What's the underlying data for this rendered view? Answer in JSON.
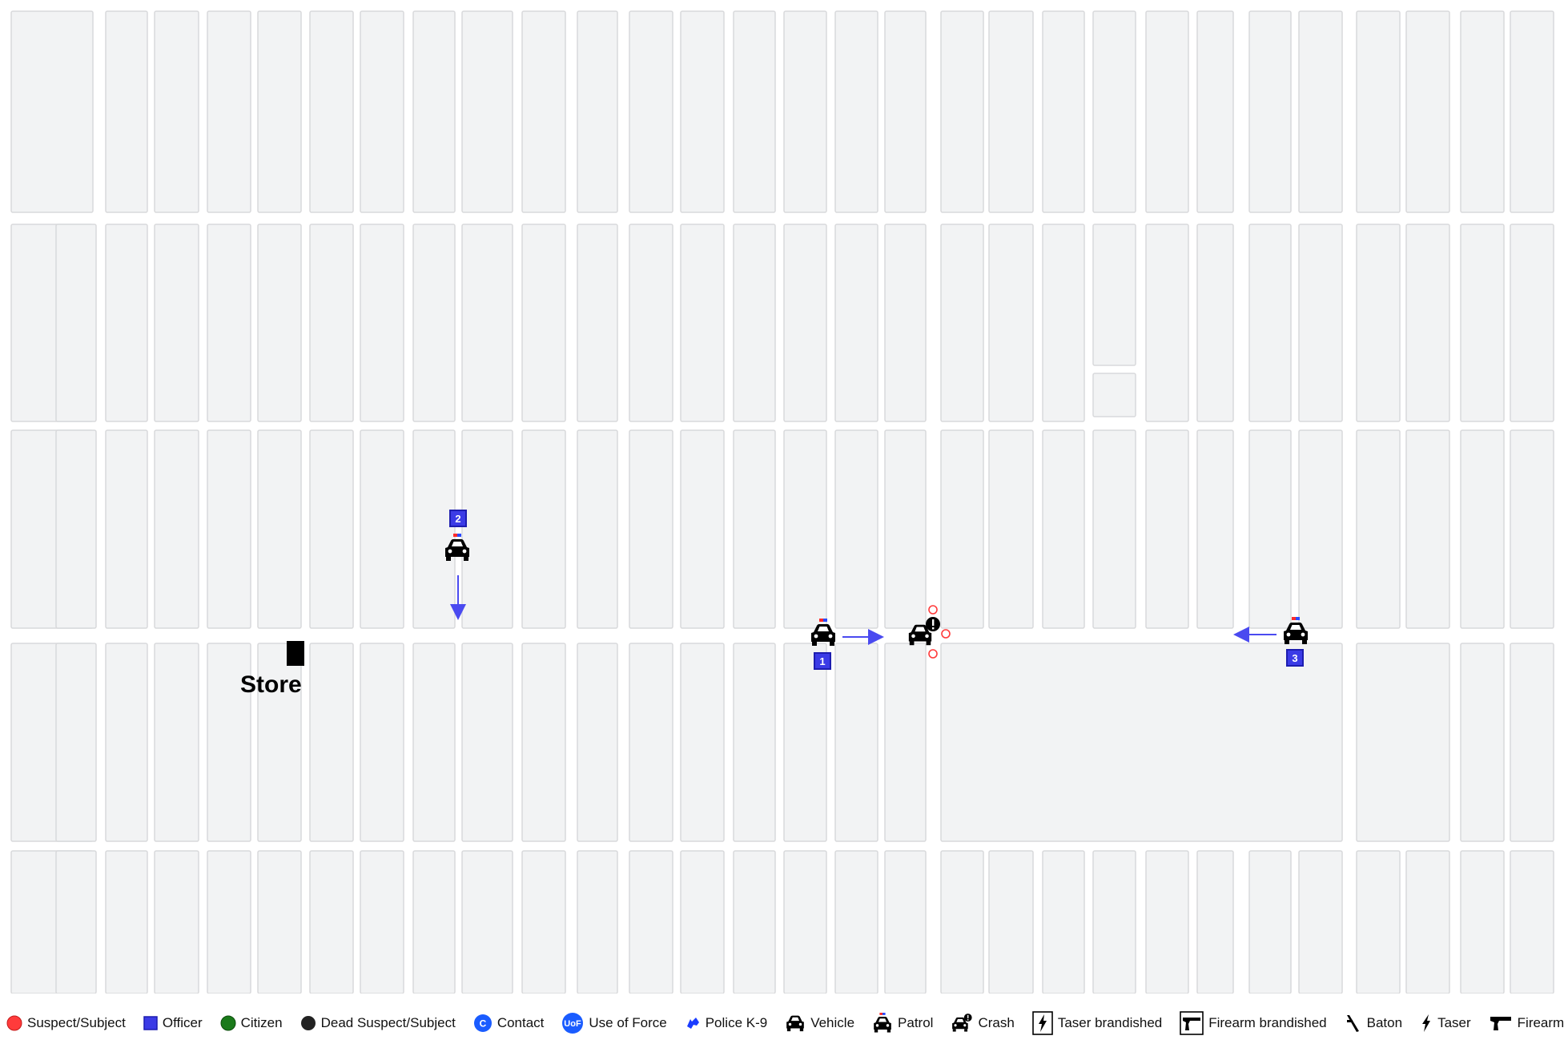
{
  "map": {
    "landmark_label": "Store",
    "officers": [
      {
        "badge": "1",
        "direction": "east"
      },
      {
        "badge": "2",
        "direction": "south"
      },
      {
        "badge": "3",
        "direction": "west"
      }
    ],
    "crash_marker": "crash-icon",
    "suspect_markers": 3
  },
  "colors": {
    "suspect": "#ff3b3b",
    "officer": "#3b3be6",
    "citizen": "#1a7a1a",
    "dead": "#222222",
    "contact": "#1a5cff",
    "block_fill": "#f2f3f4",
    "block_stroke": "#d8d9db"
  },
  "legend": [
    {
      "icon": "suspect-dot-icon",
      "label": "Suspect/Subject"
    },
    {
      "icon": "officer-square-icon",
      "label": "Officer"
    },
    {
      "icon": "citizen-dot-icon",
      "label": "Citizen"
    },
    {
      "icon": "dead-suspect-dot-icon",
      "label": "Dead Suspect/Subject"
    },
    {
      "icon": "contact-icon",
      "label": "Contact",
      "glyph": "C"
    },
    {
      "icon": "use-of-force-icon",
      "label": "Use of Force",
      "glyph": "UoF"
    },
    {
      "icon": "k9-icon",
      "label": "Police K-9"
    },
    {
      "icon": "vehicle-icon",
      "label": "Vehicle"
    },
    {
      "icon": "patrol-icon",
      "label": "Patrol"
    },
    {
      "icon": "crash-icon",
      "label": "Crash"
    },
    {
      "icon": "taser-brandished-icon",
      "label": "Taser brandished"
    },
    {
      "icon": "firearm-brandished-icon",
      "label": "Firearm brandished"
    },
    {
      "icon": "baton-icon",
      "label": "Baton"
    },
    {
      "icon": "taser-icon",
      "label": "Taser"
    },
    {
      "icon": "firearm-icon",
      "label": "Firearm"
    }
  ]
}
